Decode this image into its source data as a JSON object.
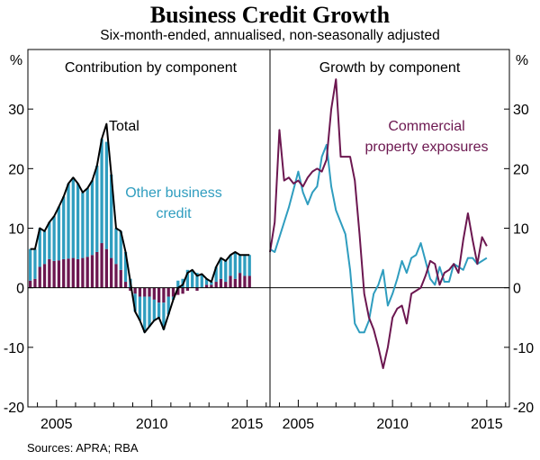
{
  "title": "Business Credit Growth",
  "subtitle": "Six-month-ended, annualised, non-seasonally adjusted",
  "sources": "Sources:   APRA; RBA",
  "colors": {
    "teal": "#2f9dbf",
    "purple": "#6c1750",
    "total": "#000000",
    "grid": "#000000"
  },
  "chart_data": [
    {
      "type": "bar",
      "panel_title": "Contribution by component",
      "yunit": "%",
      "ylim": [
        -20,
        40
      ],
      "yticks": [
        -20,
        -10,
        0,
        10,
        20,
        30
      ],
      "xlim": [
        2003.5,
        2016.2
      ],
      "xticks": [
        2005,
        2010,
        2015
      ],
      "annotations": {
        "total": "Total",
        "other": [
          "Other business",
          "credit"
        ]
      },
      "x": [
        2003.5,
        2003.75,
        2004.0,
        2004.25,
        2004.5,
        2004.75,
        2005.0,
        2005.25,
        2005.5,
        2005.75,
        2006.0,
        2006.25,
        2006.5,
        2006.75,
        2007.0,
        2007.25,
        2007.5,
        2007.75,
        2008.0,
        2008.25,
        2008.5,
        2008.75,
        2009.0,
        2009.25,
        2009.5,
        2009.75,
        2010.0,
        2010.25,
        2010.5,
        2010.75,
        2011.0,
        2011.25,
        2011.5,
        2011.75,
        2012.0,
        2012.25,
        2012.5,
        2012.75,
        2013.0,
        2013.25,
        2013.5,
        2013.75,
        2014.0,
        2014.25,
        2014.5,
        2014.75,
        2015.0
      ],
      "series": [
        {
          "name": "Commercial property exposures",
          "color": "purple",
          "values": [
            1.2,
            1.5,
            3.5,
            4.0,
            4.8,
            4.5,
            4.6,
            4.8,
            4.9,
            5.0,
            4.8,
            5.0,
            5.2,
            5.5,
            6.0,
            7.5,
            6.5,
            5.0,
            4.0,
            3.0,
            1.0,
            -0.5,
            -1.0,
            -1.5,
            -1.5,
            -1.5,
            -2.0,
            -2.5,
            -2.5,
            -1.5,
            -1.5,
            -1.2,
            -1.0,
            -0.5,
            0.0,
            -0.5,
            0.0,
            0.5,
            0.5,
            1.0,
            1.5,
            1.0,
            2.0,
            1.5,
            2.5,
            2.0,
            2.0
          ]
        },
        {
          "name": "Other business credit",
          "color": "teal",
          "values": [
            5.3,
            5.0,
            6.5,
            5.5,
            6.2,
            7.5,
            9.0,
            10.5,
            12.6,
            13.5,
            12.7,
            11.0,
            11.5,
            12.5,
            14.5,
            17.5,
            18.0,
            14.0,
            6.0,
            6.5,
            5.0,
            1.5,
            -3.0,
            -4.0,
            -6.0,
            -5.0,
            -3.5,
            -2.5,
            -4.5,
            -3.0,
            -0.5,
            1.2,
            1.5,
            3.0,
            3.0,
            2.5,
            2.3,
            1.0,
            0.5,
            2.5,
            3.5,
            3.5,
            3.5,
            4.5,
            3.0,
            3.5,
            3.5
          ]
        },
        {
          "name": "Total",
          "color": "total",
          "values": [
            6.5,
            6.5,
            10.0,
            9.5,
            11.0,
            12.0,
            13.6,
            15.3,
            17.5,
            18.5,
            17.5,
            16.0,
            16.7,
            18.0,
            20.5,
            25.0,
            27.5,
            19.0,
            10.0,
            9.5,
            6.0,
            1.0,
            -4.0,
            -5.5,
            -7.5,
            -6.5,
            -5.5,
            -5.0,
            -7.0,
            -4.5,
            -2.0,
            0.0,
            0.5,
            2.5,
            3.0,
            2.0,
            2.3,
            1.5,
            1.0,
            3.5,
            5.0,
            4.5,
            5.5,
            6.0,
            5.5,
            5.5,
            5.5
          ]
        }
      ]
    },
    {
      "type": "line",
      "panel_title": "Growth by component",
      "yunit": "%",
      "ylim": [
        -20,
        40
      ],
      "yticks": [
        -20,
        -10,
        0,
        10,
        20,
        30
      ],
      "xlim": [
        2003.5,
        2016.2
      ],
      "xticks": [
        2005,
        2010,
        2015
      ],
      "annotations": {
        "commercial": [
          "Commercial",
          "property exposures"
        ]
      },
      "x": [
        2003.5,
        2003.75,
        2004.0,
        2004.25,
        2004.5,
        2004.75,
        2005.0,
        2005.25,
        2005.5,
        2005.75,
        2006.0,
        2006.25,
        2006.5,
        2006.75,
        2007.0,
        2007.25,
        2007.5,
        2007.75,
        2008.0,
        2008.25,
        2008.5,
        2008.75,
        2009.0,
        2009.25,
        2009.5,
        2009.75,
        2010.0,
        2010.25,
        2010.5,
        2010.75,
        2011.0,
        2011.25,
        2011.5,
        2011.75,
        2012.0,
        2012.25,
        2012.5,
        2012.75,
        2013.0,
        2013.25,
        2013.5,
        2013.75,
        2014.0,
        2014.25,
        2014.5,
        2014.75,
        2015.0
      ],
      "series": [
        {
          "name": "Commercial property exposures",
          "color": "purple",
          "values": [
            6.0,
            11.0,
            26.5,
            18.0,
            18.5,
            17.5,
            18.0,
            17.0,
            18.5,
            19.5,
            20.0,
            19.5,
            21.5,
            30.0,
            35.0,
            22.0,
            22.0,
            22.0,
            18.0,
            9.0,
            -1.0,
            -5.0,
            -7.0,
            -10.0,
            -13.5,
            -10.0,
            -5.0,
            -3.5,
            -3.0,
            -6.0,
            -1.0,
            -0.5,
            0.0,
            2.0,
            4.5,
            4.0,
            0.5,
            2.5,
            3.0,
            4.0,
            2.5,
            8.0,
            12.5,
            8.0,
            4.0,
            8.5,
            7.0
          ]
        },
        {
          "name": "Other business credit",
          "color": "teal",
          "values": [
            6.5,
            6.0,
            8.5,
            11.0,
            13.5,
            16.5,
            19.5,
            16.0,
            14.0,
            16.0,
            17.0,
            22.0,
            24.0,
            17.0,
            13.0,
            11.0,
            9.0,
            3.0,
            -6.0,
            -7.5,
            -7.5,
            -5.5,
            -1.0,
            0.5,
            3.0,
            -3.0,
            -1.0,
            1.5,
            4.5,
            2.5,
            5.0,
            5.5,
            7.5,
            4.5,
            1.5,
            0.5,
            3.5,
            1.0,
            1.0,
            4.0,
            3.5,
            3.0,
            5.0,
            5.0,
            4.0,
            4.5,
            5.0
          ]
        }
      ]
    }
  ]
}
